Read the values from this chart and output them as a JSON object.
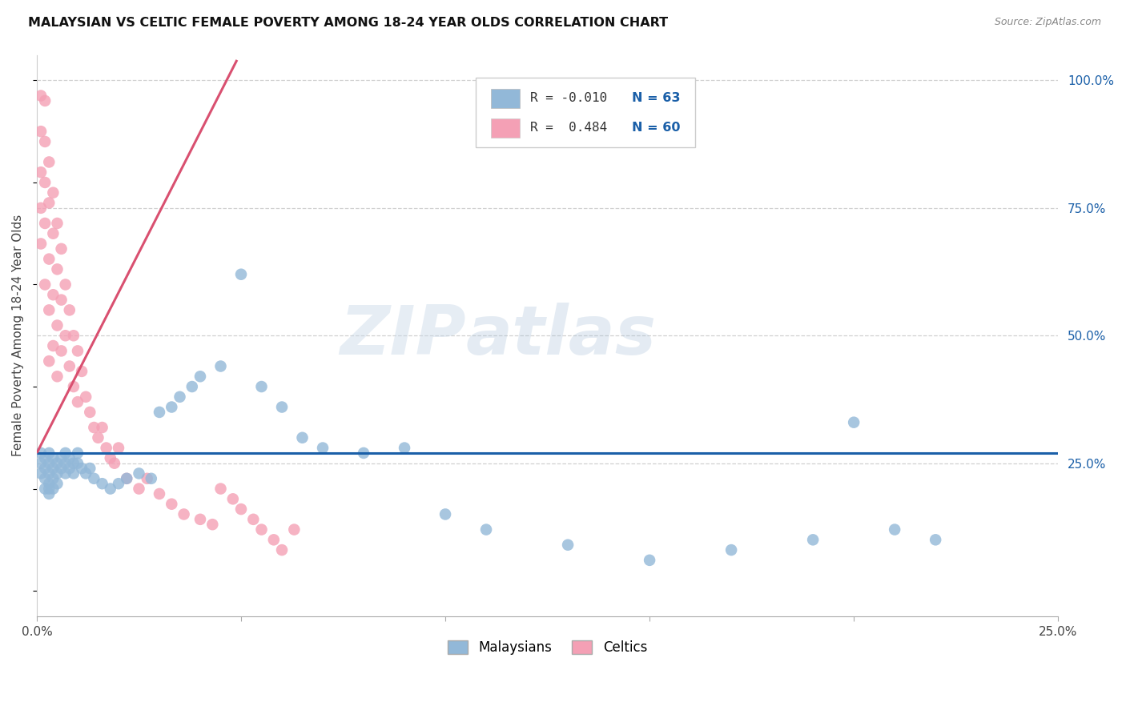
{
  "title": "MALAYSIAN VS CELTIC FEMALE POVERTY AMONG 18-24 YEAR OLDS CORRELATION CHART",
  "source": "Source: ZipAtlas.com",
  "ylabel": "Female Poverty Among 18-24 Year Olds",
  "xlim": [
    0.0,
    0.25
  ],
  "ylim": [
    -0.05,
    1.05
  ],
  "x_ticks": [
    0.0,
    0.05,
    0.1,
    0.15,
    0.2,
    0.25
  ],
  "x_tick_labels": [
    "0.0%",
    "",
    "",
    "",
    "",
    "25.0%"
  ],
  "y_ticks_right": [
    0.0,
    0.25,
    0.5,
    0.75,
    1.0
  ],
  "y_tick_labels_right": [
    "",
    "25.0%",
    "50.0%",
    "75.0%",
    "100.0%"
  ],
  "malaysian_R": -0.01,
  "celtic_R": 0.484,
  "malaysian_N": 63,
  "celtic_N": 60,
  "malaysian_color": "#92b8d8",
  "celtic_color": "#f4a0b5",
  "malaysian_line_color": "#1a5fa8",
  "celtic_line_color": "#d95070",
  "watermark_zip": "ZIP",
  "watermark_atlas": "atlas",
  "grid_color": "#d0d0d0",
  "malaysians_label": "Malaysians",
  "celtics_label": "Celtics",
  "legend_R1_text": "R = -0.010",
  "legend_N1_text": "N = 63",
  "legend_R2_text": "R =  0.484",
  "legend_N2_text": "N = 60",
  "mal_x": [
    0.001,
    0.001,
    0.001,
    0.002,
    0.002,
    0.002,
    0.002,
    0.003,
    0.003,
    0.003,
    0.003,
    0.003,
    0.003,
    0.004,
    0.004,
    0.004,
    0.004,
    0.005,
    0.005,
    0.005,
    0.006,
    0.006,
    0.007,
    0.007,
    0.007,
    0.008,
    0.008,
    0.009,
    0.009,
    0.01,
    0.01,
    0.011,
    0.012,
    0.013,
    0.014,
    0.016,
    0.018,
    0.02,
    0.022,
    0.025,
    0.028,
    0.03,
    0.033,
    0.035,
    0.038,
    0.04,
    0.045,
    0.05,
    0.055,
    0.06,
    0.065,
    0.07,
    0.08,
    0.09,
    0.1,
    0.11,
    0.13,
    0.15,
    0.17,
    0.19,
    0.2,
    0.21,
    0.22
  ],
  "mal_y": [
    0.27,
    0.25,
    0.23,
    0.26,
    0.24,
    0.22,
    0.2,
    0.27,
    0.25,
    0.23,
    0.21,
    0.2,
    0.19,
    0.26,
    0.24,
    0.22,
    0.2,
    0.25,
    0.23,
    0.21,
    0.26,
    0.24,
    0.27,
    0.25,
    0.23,
    0.26,
    0.24,
    0.25,
    0.23,
    0.27,
    0.25,
    0.24,
    0.23,
    0.24,
    0.22,
    0.21,
    0.2,
    0.21,
    0.22,
    0.23,
    0.22,
    0.35,
    0.36,
    0.38,
    0.4,
    0.42,
    0.44,
    0.62,
    0.4,
    0.36,
    0.3,
    0.28,
    0.27,
    0.28,
    0.15,
    0.12,
    0.09,
    0.06,
    0.08,
    0.1,
    0.33,
    0.12,
    0.1
  ],
  "cel_x": [
    0.001,
    0.001,
    0.001,
    0.001,
    0.001,
    0.002,
    0.002,
    0.002,
    0.002,
    0.002,
    0.003,
    0.003,
    0.003,
    0.003,
    0.003,
    0.004,
    0.004,
    0.004,
    0.004,
    0.005,
    0.005,
    0.005,
    0.005,
    0.006,
    0.006,
    0.006,
    0.007,
    0.007,
    0.008,
    0.008,
    0.009,
    0.009,
    0.01,
    0.01,
    0.011,
    0.012,
    0.013,
    0.014,
    0.015,
    0.016,
    0.017,
    0.018,
    0.019,
    0.02,
    0.022,
    0.025,
    0.027,
    0.03,
    0.033,
    0.036,
    0.04,
    0.043,
    0.045,
    0.048,
    0.05,
    0.053,
    0.055,
    0.058,
    0.06,
    0.063
  ],
  "cel_y": [
    0.97,
    0.9,
    0.82,
    0.75,
    0.68,
    0.96,
    0.88,
    0.8,
    0.72,
    0.6,
    0.84,
    0.76,
    0.65,
    0.55,
    0.45,
    0.78,
    0.7,
    0.58,
    0.48,
    0.72,
    0.63,
    0.52,
    0.42,
    0.67,
    0.57,
    0.47,
    0.6,
    0.5,
    0.55,
    0.44,
    0.5,
    0.4,
    0.47,
    0.37,
    0.43,
    0.38,
    0.35,
    0.32,
    0.3,
    0.32,
    0.28,
    0.26,
    0.25,
    0.28,
    0.22,
    0.2,
    0.22,
    0.19,
    0.17,
    0.15,
    0.14,
    0.13,
    0.2,
    0.18,
    0.16,
    0.14,
    0.12,
    0.1,
    0.08,
    0.12
  ],
  "mal_line_x": [
    0.0,
    0.25
  ],
  "mal_line_y": [
    0.27,
    0.27
  ],
  "cel_line_x0": 0.0,
  "cel_line_y0": 0.27,
  "cel_line_x1": 0.049,
  "cel_line_y1": 1.04
}
